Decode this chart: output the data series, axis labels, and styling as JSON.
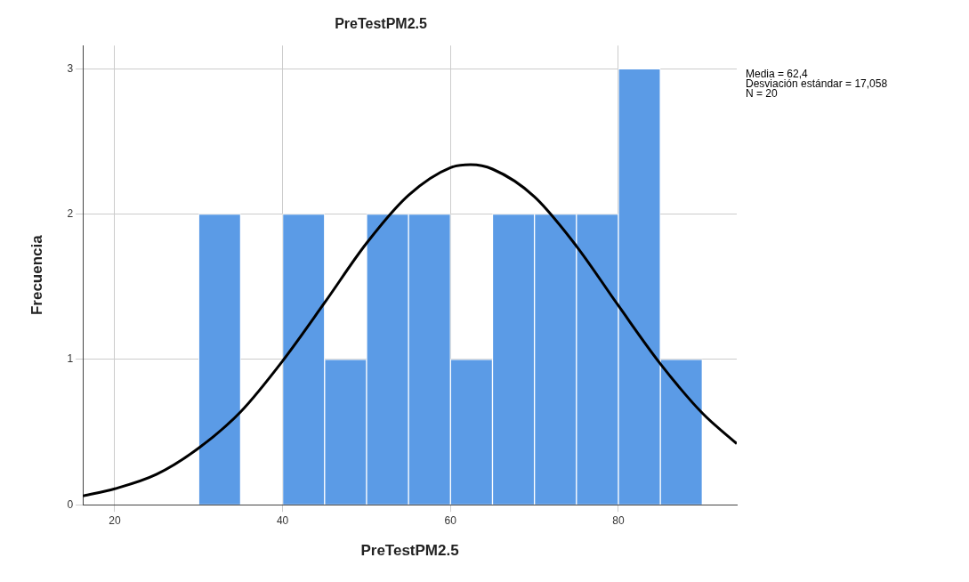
{
  "chart_data": {
    "type": "histogram",
    "title": "PreTestPM2.5",
    "xlabel": "PreTestPM2.5",
    "ylabel": "Frecuencia",
    "bins": [
      30,
      35,
      40,
      45,
      50,
      55,
      60,
      65,
      70,
      75,
      80,
      85,
      90
    ],
    "values": [
      2,
      0,
      2,
      1,
      2,
      2,
      1,
      2,
      2,
      2,
      3,
      1
    ],
    "color": "#5b9be6",
    "series": [
      {
        "type": "line",
        "color": "#000000",
        "x": [
          16.2,
          20,
          25,
          30,
          35,
          40,
          45,
          50,
          55,
          60,
          62.4,
          65,
          70,
          75,
          80,
          85,
          90,
          94.1
        ],
        "values": [
          0.06,
          0.11,
          0.21,
          0.39,
          0.64,
          0.99,
          1.39,
          1.8,
          2.13,
          2.32,
          2.34,
          2.31,
          2.12,
          1.78,
          1.37,
          0.97,
          0.63,
          0.42
        ]
      }
    ],
    "xlim": [
      16.2,
      94.1
    ],
    "xticks": [
      20,
      40,
      60,
      80
    ],
    "ylim": [
      0,
      3.16
    ],
    "yticks": [
      0,
      1,
      2,
      3
    ],
    "grid": true,
    "legend": false,
    "marker": "none",
    "annotations": [
      "Media = 62,4",
      "Desviación estándar = 17,058",
      "N = 20"
    ]
  }
}
